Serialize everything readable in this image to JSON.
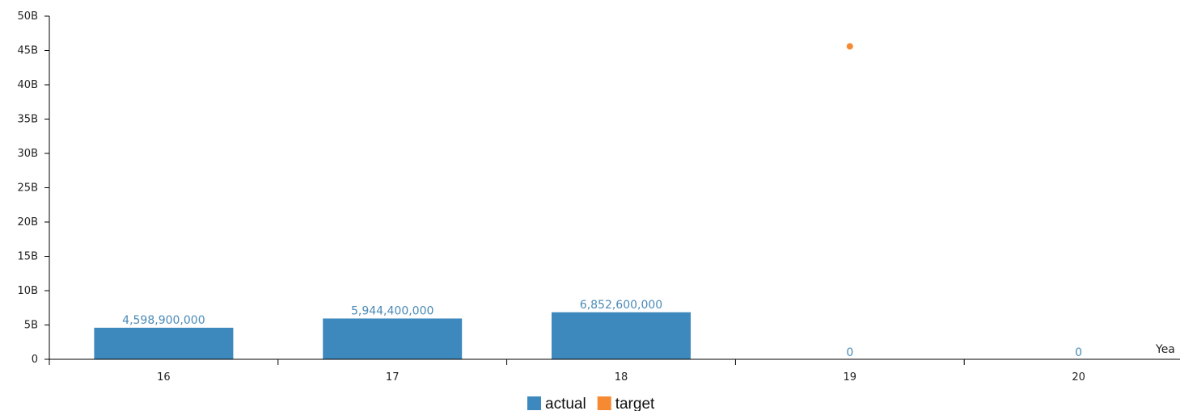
{
  "chart_data": {
    "type": "bar",
    "title": "",
    "xlabel": "Yea",
    "ylabel": "",
    "categories": [
      "16",
      "17",
      "18",
      "19",
      "20"
    ],
    "series": [
      {
        "name": "actual",
        "type": "bar",
        "color": "#3d89bd",
        "values": [
          4598900000,
          5944400000,
          6852600000,
          0,
          0
        ],
        "labels": [
          "4,598,900,000",
          "5,944,400,000",
          "6,852,600,000",
          "0",
          "0"
        ]
      },
      {
        "name": "target",
        "type": "scatter",
        "color": "#f58a33",
        "values": [
          null,
          null,
          null,
          45600000000,
          null
        ]
      }
    ],
    "ylim": [
      0,
      50000000000
    ],
    "yticks": [
      0,
      5000000000,
      10000000000,
      15000000000,
      20000000000,
      25000000000,
      30000000000,
      35000000000,
      40000000000,
      45000000000,
      50000000000
    ],
    "ytick_labels": [
      "0",
      "5B",
      "10B",
      "15B",
      "20B",
      "25B",
      "30B",
      "35B",
      "40B",
      "45B",
      "50B"
    ],
    "grid": false,
    "legend_position": "bottom-center"
  }
}
